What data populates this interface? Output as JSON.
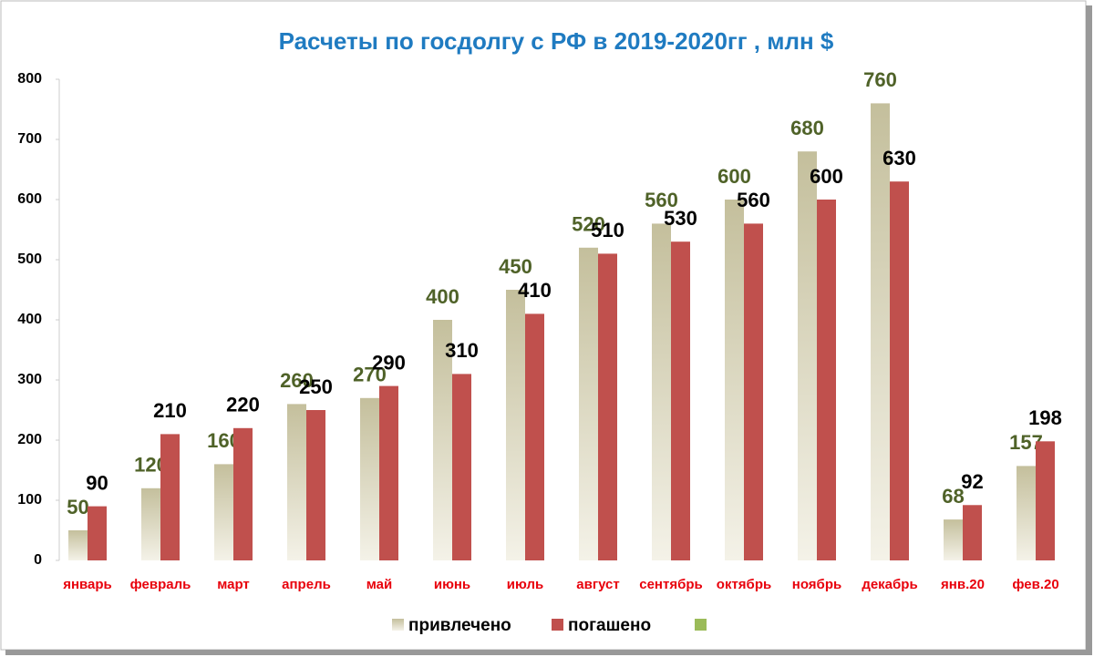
{
  "chart_data": {
    "type": "bar",
    "title": "Расчеты по госдолгу с РФ в 2019-2020гг , млн $",
    "categories": [
      "январь",
      "февраль",
      "март",
      "апрель",
      "май",
      "июнь",
      "июль",
      "август",
      "сентябрь",
      "октябрь",
      "ноябрь",
      "декабрь",
      "янв.20",
      "фев.20"
    ],
    "series": [
      {
        "name": "привлечено",
        "color": "#c4bf9c",
        "label_color": "#4f6228",
        "values": [
          50,
          120,
          160,
          260,
          270,
          400,
          450,
          520,
          560,
          600,
          680,
          760,
          68,
          157
        ]
      },
      {
        "name": "погашено",
        "color": "#c0504d",
        "label_color": "#000000",
        "values": [
          90,
          210,
          220,
          250,
          290,
          310,
          410,
          510,
          530,
          560,
          600,
          630,
          92,
          198
        ]
      }
    ],
    "ylim": [
      0,
      800
    ],
    "yticks": [
      0,
      100,
      200,
      300,
      400,
      500,
      600,
      700,
      800
    ],
    "grid": false
  }
}
